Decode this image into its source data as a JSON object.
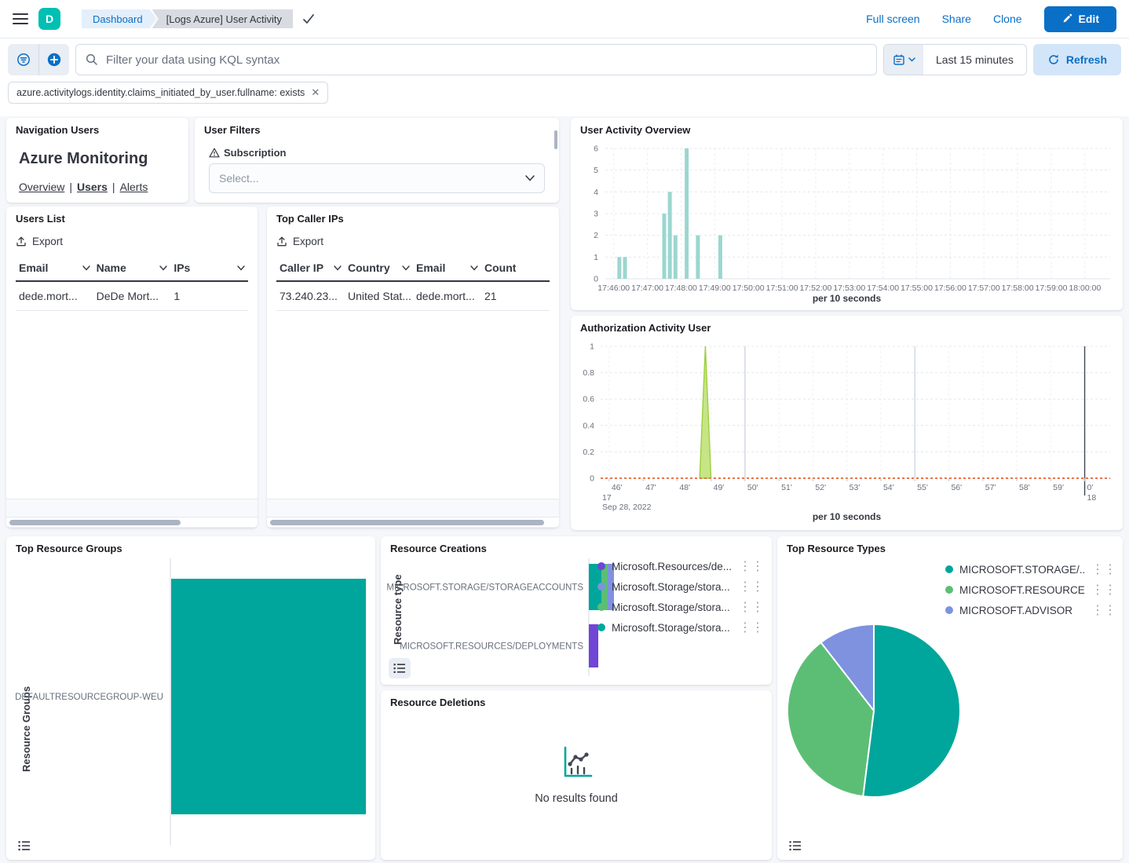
{
  "header": {
    "logo_letter": "D",
    "breadcrumbs": [
      "Dashboard",
      "[Logs Azure] User Activity"
    ],
    "actions": {
      "full_screen": "Full screen",
      "share": "Share",
      "clone": "Clone",
      "edit": "Edit"
    }
  },
  "query_bar": {
    "search_placeholder": "Filter your data using KQL syntax",
    "time_range": "Last 15 minutes",
    "refresh_label": "Refresh",
    "filter_pill": "azure.activitylogs.identity.claims_initiated_by_user.fullname: exists"
  },
  "panels": {
    "navigation_users": {
      "title": "Navigation Users",
      "heading": "Azure Monitoring",
      "links": [
        "Overview",
        "Users",
        "Alerts"
      ],
      "separator": "|"
    },
    "user_filters": {
      "title": "User Filters",
      "field_label": "Subscription",
      "select_placeholder": "Select..."
    },
    "user_activity_overview": {
      "title": "User Activity Overview",
      "axis_note": "per 10 seconds"
    },
    "users_list": {
      "title": "Users List",
      "export_label": "Export",
      "columns": [
        {
          "label": "Email",
          "sortable": true
        },
        {
          "label": "Name",
          "sortable": true
        },
        {
          "label": "IPs",
          "sortable": true
        }
      ],
      "rows": [
        [
          "dede.mort...",
          "DeDe Mort...",
          "1"
        ]
      ]
    },
    "top_caller_ips": {
      "title": "Top Caller IPs",
      "export_label": "Export",
      "columns": [
        {
          "label": "Caller IP",
          "sortable": true
        },
        {
          "label": "Country",
          "sortable": true
        },
        {
          "label": "Email",
          "sortable": true
        },
        {
          "label": "Count",
          "sortable": false
        }
      ],
      "rows": [
        [
          "73.240.23...",
          "United Stat...",
          "dede.mort...",
          "21"
        ]
      ]
    },
    "authorization_activity": {
      "title": "Authorization Activity User",
      "axis_note": "per 10 seconds"
    },
    "top_resource_groups": {
      "title": "Top Resource Groups",
      "ylabel": "Resource Groups"
    },
    "resource_creations": {
      "title": "Resource Creations",
      "ylabel": "Resource type"
    },
    "resource_deletions": {
      "title": "Resource Deletions",
      "empty_message": "No results found"
    },
    "top_resource_types": {
      "title": "Top Resource Types"
    }
  },
  "colors": {
    "accent_blue": "#0A6FC6",
    "teal": "#00A69B",
    "green": "#5CBE75",
    "periwinkle": "#7E92E0",
    "purple": "#7145D6",
    "bar_teal_light": "#9CD6D0",
    "lime_fill": "#C4E47F",
    "lime_stroke": "#97CE35",
    "orange": "#EB7347"
  },
  "chart_data": [
    {
      "id": "user_activity_overview",
      "type": "bar",
      "title": "User Activity Overview",
      "xlabel": "per 10 seconds",
      "ylabel": "",
      "ylim": [
        0,
        6
      ],
      "y_ticks": [
        0,
        1,
        2,
        3,
        4,
        5,
        6
      ],
      "x_domain": [
        "17:45:45",
        "18:00:45"
      ],
      "x_ticks": [
        "17:46:00",
        "17:47:00",
        "17:48:00",
        "17:49:00",
        "17:50:00",
        "17:51:00",
        "17:52:00",
        "17:53:00",
        "17:54:00",
        "17:55:00",
        "17:56:00",
        "17:57:00",
        "17:58:00",
        "17:59:00",
        "18:00:00"
      ],
      "bar_color": "#9CD6D0",
      "points": [
        {
          "x": "17:46:10",
          "y": 1
        },
        {
          "x": "17:46:20",
          "y": 1
        },
        {
          "x": "17:47:30",
          "y": 3
        },
        {
          "x": "17:47:40",
          "y": 4
        },
        {
          "x": "17:47:50",
          "y": 2
        },
        {
          "x": "17:48:10",
          "y": 6
        },
        {
          "x": "17:48:30",
          "y": 2
        },
        {
          "x": "17:49:10",
          "y": 2
        }
      ]
    },
    {
      "id": "authorization_activity_user",
      "type": "area",
      "title": "Authorization Activity User",
      "xlabel": "per 10 seconds",
      "ylim": [
        0,
        1
      ],
      "y_ticks": [
        0,
        0.2,
        0.4,
        0.6,
        0.8,
        1
      ],
      "x_domain": [
        "17:45:45",
        "18:00:45"
      ],
      "x_ticks": [
        {
          "t": "17:46:00",
          "label": "46'"
        },
        {
          "t": "17:47:00",
          "label": "47'"
        },
        {
          "t": "17:48:00",
          "label": "48'"
        },
        {
          "t": "17:49:00",
          "label": "49'"
        },
        {
          "t": "17:50:00",
          "label": "50'"
        },
        {
          "t": "17:51:00",
          "label": "51'"
        },
        {
          "t": "17:52:00",
          "label": "52'"
        },
        {
          "t": "17:53:00",
          "label": "53'"
        },
        {
          "t": "17:54:00",
          "label": "54'"
        },
        {
          "t": "17:55:00",
          "label": "55'"
        },
        {
          "t": "17:56:00",
          "label": "56'"
        },
        {
          "t": "17:57:00",
          "label": "57'"
        },
        {
          "t": "17:58:00",
          "label": "58'"
        },
        {
          "t": "17:59:00",
          "label": "59'"
        },
        {
          "t": "18:00:00",
          "label": "0'"
        }
      ],
      "start_hour_label": "17",
      "start_date_label": "Sep 28, 2022",
      "end_hour_label": "18",
      "solid_gridline_times": [
        "17:50:00",
        "17:55:00"
      ],
      "end_line_time": "18:00:00",
      "area_series": {
        "color_fill": "#C4E47F",
        "color_stroke": "#97CE35",
        "points": [
          {
            "x": "17:48:40",
            "y": 0
          },
          {
            "x": "17:48:50",
            "y": 1
          },
          {
            "x": "17:49:00",
            "y": 0
          }
        ]
      },
      "baseline_series": {
        "color": "#EB7347",
        "value": 0
      }
    },
    {
      "id": "top_resource_groups",
      "type": "bar_horizontal",
      "title": "Top Resource Groups",
      "ylabel": "Resource Groups",
      "categories": [
        "DEFAULTRESOURCEGROUP-WEU"
      ],
      "values": [
        21
      ],
      "xmax": 21.5,
      "bar_color": "#00A69B"
    },
    {
      "id": "resource_creations",
      "type": "bar_horizontal_stacked",
      "title": "Resource Creations",
      "ylabel": "Resource type",
      "categories": [
        "MICROSOFT.STORAGE/STORAGEACCOUNTS",
        "MICROSOFT.RESOURCES/DEPLOYMENTS"
      ],
      "xmax": 10,
      "series": [
        {
          "name": "Microsoft.Resources/de...",
          "color": "#7145D6",
          "values": [
            0,
            3
          ]
        },
        {
          "name": "Microsoft.Storage/stora...",
          "color": "#7E92E0",
          "values": [
            2,
            0
          ]
        },
        {
          "name": "Microsoft.Storage/stora...",
          "color": "#5CBE75",
          "values": [
            2,
            0
          ]
        },
        {
          "name": "Microsoft.Storage/stora...",
          "color": "#00A69B",
          "values": [
            4,
            0
          ]
        }
      ]
    },
    {
      "id": "top_resource_types",
      "type": "pie",
      "title": "Top Resource Types",
      "slices": [
        {
          "label": "MICROSOFT.STORAGE/...",
          "value": 52,
          "color": "#00A69B"
        },
        {
          "label": "MICROSOFT.RESOURCE...",
          "value": 37.5,
          "color": "#5CBE75"
        },
        {
          "label": "MICROSOFT.ADVISOR",
          "value": 10.5,
          "color": "#7E92E0"
        }
      ]
    }
  ]
}
